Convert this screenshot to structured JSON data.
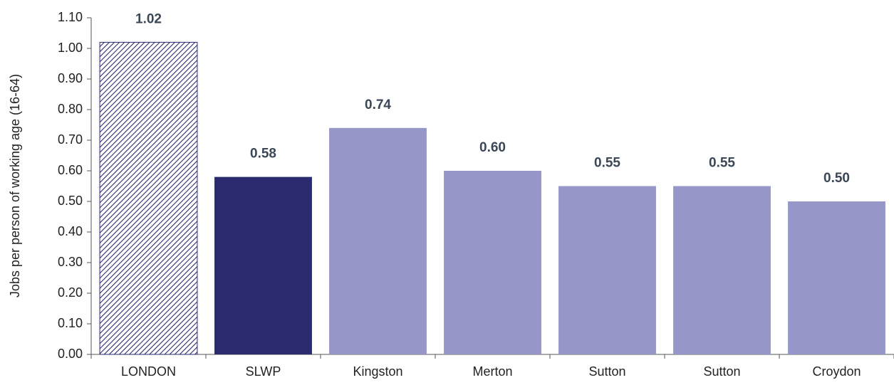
{
  "chart_data": {
    "type": "bar",
    "y_axis_label": "Jobs per person of working age (16-64)",
    "categories": [
      "LONDON",
      "SLWP",
      "Kingston",
      "Merton",
      "Sutton",
      "Sutton",
      "Croydon"
    ],
    "values": [
      1.02,
      0.58,
      0.74,
      0.6,
      0.55,
      0.55,
      0.5
    ],
    "value_labels": [
      "1.02",
      "0.58",
      "0.74",
      "0.60",
      "0.55",
      "0.55",
      "0.50"
    ],
    "colors": [
      "#2b2b70",
      "#2a2a6e",
      "#9696c8",
      "#9696c8",
      "#9696c8",
      "#9696c8",
      "#9696c8"
    ],
    "hatch": [
      true,
      false,
      false,
      false,
      false,
      false,
      false
    ],
    "ylim": [
      0,
      1.1
    ],
    "yticks": [
      {
        "value": 0,
        "label": "0.00"
      },
      {
        "value": 0.1,
        "label": "0.10"
      },
      {
        "value": 0.2,
        "label": "0.20"
      },
      {
        "value": 0.3,
        "label": "0.30"
      },
      {
        "value": 0.4,
        "label": "0.40"
      },
      {
        "value": 0.5,
        "label": "0.50"
      },
      {
        "value": 0.6,
        "label": "0.60"
      },
      {
        "value": 0.7,
        "label": "0.70"
      },
      {
        "value": 0.8,
        "label": "0.80"
      },
      {
        "value": 0.9,
        "label": "0.90"
      },
      {
        "value": 1.0,
        "label": "1.00"
      },
      {
        "value": 1.1,
        "label": "1.10"
      }
    ],
    "grid": false
  }
}
